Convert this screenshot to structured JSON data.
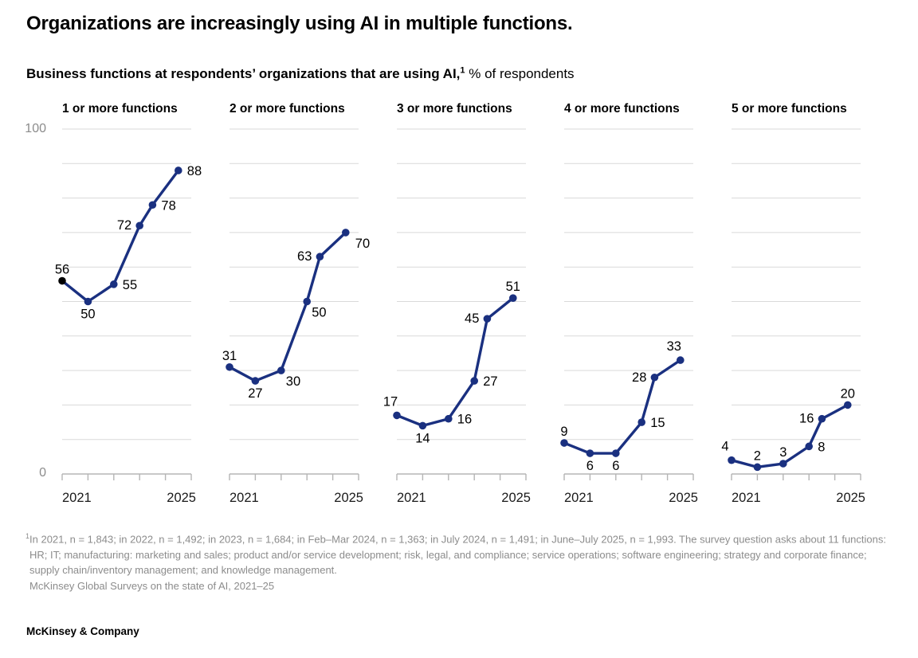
{
  "header": {
    "title": "Organizations are increasingly using AI in multiple functions.",
    "subtitle_bold": "Business functions at respondents’ organizations that are using AI,",
    "subtitle_superscript": "1",
    "subtitle_rest": " % of respondents"
  },
  "chart_data": {
    "type": "line",
    "unit": "% of respondents",
    "grid": "horizontal",
    "legend_position": "none",
    "y_axis": {
      "min": 0,
      "max": 100,
      "min_label": "0",
      "max_label": "100",
      "gridline_step": 10
    },
    "x_axis": {
      "start_label": "2021",
      "end_label": "2025",
      "tick_count": 6,
      "waves": [
        "2021",
        "2022",
        "2023",
        "Feb–Mar 2024",
        "July 2024",
        "June–July 2025"
      ],
      "point_fractions": [
        0,
        0.2,
        0.4,
        0.6,
        0.7,
        0.9
      ]
    },
    "panels": [
      {
        "title": "1 or more functions",
        "values": [
          56,
          50,
          55,
          72,
          78,
          88
        ],
        "label_pos": [
          "above",
          "below",
          "right",
          "left",
          "right",
          "right"
        ],
        "first_point_color": "#000000"
      },
      {
        "title": "2 or more functions",
        "values": [
          31,
          27,
          30,
          50,
          63,
          70
        ],
        "label_pos": [
          "above",
          "below",
          "below-right",
          "below-right",
          "left",
          "right-down"
        ]
      },
      {
        "title": "3 or more functions",
        "values": [
          17,
          14,
          16,
          27,
          45,
          51
        ],
        "label_pos": [
          "above-left",
          "below",
          "right",
          "right",
          "left",
          "above"
        ]
      },
      {
        "title": "4 or more functions",
        "values": [
          9,
          6,
          6,
          15,
          28,
          33
        ],
        "label_pos": [
          "above",
          "below",
          "below",
          "right",
          "left",
          "above-left"
        ]
      },
      {
        "title": "5 or more functions",
        "values": [
          4,
          2,
          3,
          8,
          16,
          20
        ],
        "label_pos": [
          "above-left",
          "above",
          "above",
          "right",
          "left",
          "above"
        ]
      }
    ],
    "colors": {
      "line": "#1a3080",
      "first_point": "#000000",
      "gridline": "#d9d9d9",
      "axis": "#b5b5b5",
      "data_label": "#000000",
      "axis_value_label": "#8c8c8c",
      "year_label": "#1a1a1a"
    }
  },
  "footnote": {
    "superscript": "1",
    "text": "In 2021, n = 1,843; in 2022, n = 1,492; in 2023, n = 1,684; in Feb–Mar 2024, n = 1,363; in July 2024, n = 1,491; in June–July 2025, n = 1,993. The survey question asks about 11 functions: HR; IT; manufacturing: marketing and sales; product and/or service development; risk, legal, and compliance; service operations; software engineering; strategy and corporate finance; supply chain/inventory management; and knowledge management.",
    "source": "McKinsey Global Surveys on the state of AI, 2021–25"
  },
  "footer": {
    "brand": "McKinsey & Company"
  }
}
